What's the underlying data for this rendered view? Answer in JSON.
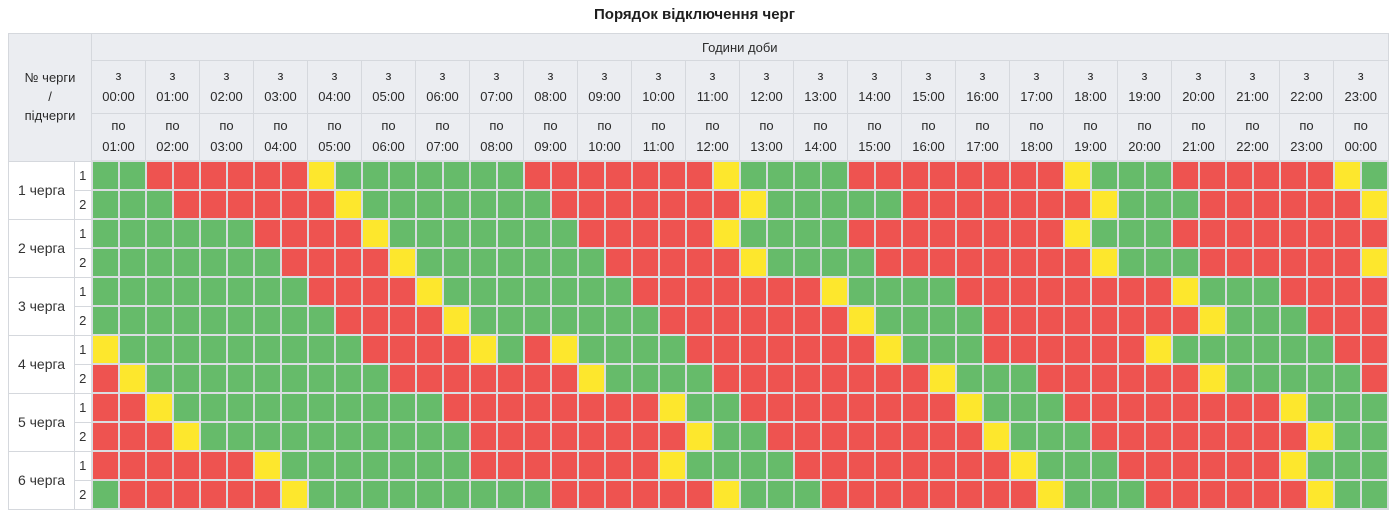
{
  "header": {
    "from_prefix": "з",
    "to_prefix": "по"
  },
  "chart_data": {
    "type": "heatmap",
    "title": "Порядок відключення черг",
    "x_axis_label": "Години доби",
    "y_axis_label": "№ черги\n/\nпідчерги",
    "cell_resolution_minutes": 30,
    "value_colors": {
      "G": "#66bb6a",
      "R": "#ee5350",
      "Y": "#fde72d"
    },
    "columns": [
      {
        "from": "00:00",
        "to": "01:00"
      },
      {
        "from": "01:00",
        "to": "02:00"
      },
      {
        "from": "02:00",
        "to": "03:00"
      },
      {
        "from": "03:00",
        "to": "04:00"
      },
      {
        "from": "04:00",
        "to": "05:00"
      },
      {
        "from": "05:00",
        "to": "06:00"
      },
      {
        "from": "06:00",
        "to": "07:00"
      },
      {
        "from": "07:00",
        "to": "08:00"
      },
      {
        "from": "08:00",
        "to": "09:00"
      },
      {
        "from": "09:00",
        "to": "10:00"
      },
      {
        "from": "10:00",
        "to": "11:00"
      },
      {
        "from": "11:00",
        "to": "12:00"
      },
      {
        "from": "12:00",
        "to": "13:00"
      },
      {
        "from": "13:00",
        "to": "14:00"
      },
      {
        "from": "14:00",
        "to": "15:00"
      },
      {
        "from": "15:00",
        "to": "16:00"
      },
      {
        "from": "16:00",
        "to": "17:00"
      },
      {
        "from": "17:00",
        "to": "18:00"
      },
      {
        "from": "18:00",
        "to": "19:00"
      },
      {
        "from": "19:00",
        "to": "20:00"
      },
      {
        "from": "20:00",
        "to": "21:00"
      },
      {
        "from": "21:00",
        "to": "22:00"
      },
      {
        "from": "22:00",
        "to": "23:00"
      },
      {
        "from": "23:00",
        "to": "00:00"
      }
    ],
    "rows": [
      {
        "queue": "1 черга",
        "subqueue": "1",
        "cells": "GGRRRRRRYGGGGGGGRRRRRRRYGGGGRRRRRRRRYGGGRRRRRRYG"
      },
      {
        "queue": "1 черга",
        "subqueue": "2",
        "cells": "GGGRRRRRRYGGGGGGGRRRRRRRYGGGGGRRRRRRRYGGGRRRRRRY"
      },
      {
        "queue": "2 черга",
        "subqueue": "1",
        "cells": "GGGGGGRRRRYGGGGGGGRRRRRYGGGGRRRRRRRRYGGGRRRRRRRR"
      },
      {
        "queue": "2 черга",
        "subqueue": "2",
        "cells": "GGGGGGGRRRRYGGGGGGGRRRRRYGGGGRRRRRRRRYGGGRRRRRRY"
      },
      {
        "queue": "3 черга",
        "subqueue": "1",
        "cells": "GGGGGGGGRRRRYGGGGGGGRRRRRRRYGGGGRRRRRRRRYGGGRRRR"
      },
      {
        "queue": "3 черга",
        "subqueue": "2",
        "cells": "GGGGGGGGGRRRRYGGGGGGGRRRRRRRYGGGGRRRRRRRRYGGGRRR"
      },
      {
        "queue": "4 черга",
        "subqueue": "1",
        "cells": "YGGGGGGGGGRRRRYGRYGGGGRRRRRRRYGGGRRRRRRYGGGGGGRR"
      },
      {
        "queue": "4 черга",
        "subqueue": "2",
        "cells": "RYGGGGGGGGGRRRRRRRYGGGGRRRRRRRRYGGGRRRRRRYGGGGGR"
      },
      {
        "queue": "5 черга",
        "subqueue": "1",
        "cells": "RRYGGGGGGGGGGRRRRRRRRYGGRRRRRRRRYGGGRRRRRRRRYGGG"
      },
      {
        "queue": "5 черга",
        "subqueue": "2",
        "cells": "RRRYGGGGGGGGGGRRRRRRRRYGGRRRRRRRRYGGGRRRRRRRRYGG"
      },
      {
        "queue": "6 черга",
        "subqueue": "1",
        "cells": "RRRRRRYGGGGGGGRRRRRRRYGGGGRRRRRRRRYGGGRRRRRRYGGG"
      },
      {
        "queue": "6 черга",
        "subqueue": "2",
        "cells": "GRRRRRRYGGGGGGGGGRRRRRRYGGGRRRRRRRRYGGGRRRRRRYGG"
      }
    ]
  }
}
